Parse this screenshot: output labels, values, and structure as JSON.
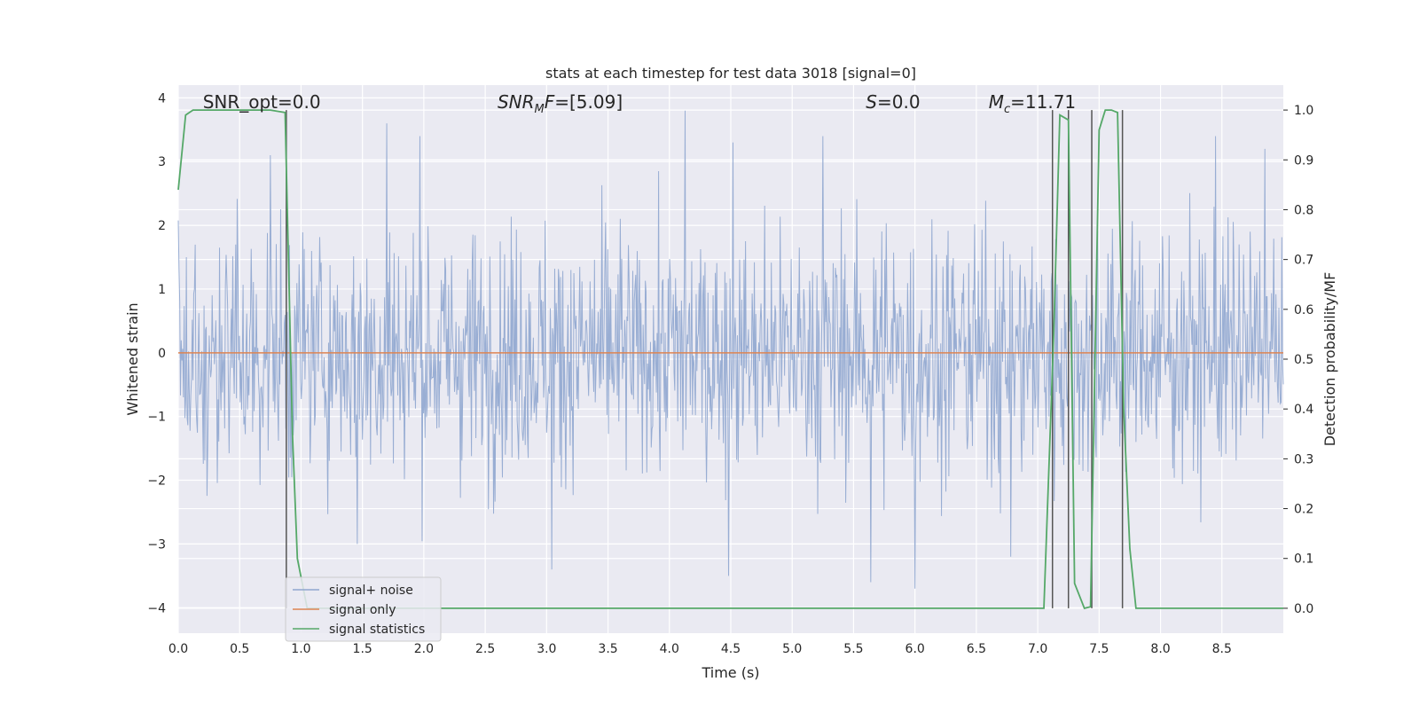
{
  "chart_data": {
    "type": "line",
    "title": "stats at each timestep for test data 3018 [signal=0]",
    "xlabel": "Time (s)",
    "ylabel": "Whitened strain",
    "y2label": "Detection probability/MF",
    "xlim": [
      0.0,
      9.0
    ],
    "ylim": [
      -4.4,
      4.2
    ],
    "y2lim": [
      -0.05,
      1.05
    ],
    "xticks": [
      0.0,
      0.5,
      1.0,
      1.5,
      2.0,
      2.5,
      3.0,
      3.5,
      4.0,
      4.5,
      5.0,
      5.5,
      6.0,
      6.5,
      7.0,
      7.5,
      8.0,
      8.5
    ],
    "xtick_labels": [
      "0.0",
      "0.5",
      "1.0",
      "1.5",
      "2.0",
      "2.5",
      "3.0",
      "3.5",
      "4.0",
      "4.5",
      "5.0",
      "5.5",
      "6.0",
      "6.5",
      "7.0",
      "7.5",
      "8.0",
      "8.5"
    ],
    "yticks": [
      4,
      3,
      2,
      1,
      0,
      -1,
      -2,
      -3,
      -4
    ],
    "ytick_labels": [
      "4",
      "3",
      "2",
      "1",
      "0",
      "−1",
      "−2",
      "−3",
      "−4"
    ],
    "y2ticks": [
      1.0,
      0.9,
      0.8,
      0.7,
      0.6,
      0.5,
      0.4,
      0.3,
      0.2,
      0.1,
      0.0
    ],
    "y2tick_labels": [
      "1.0",
      "0.9",
      "0.8",
      "0.7",
      "0.6",
      "0.5",
      "0.4",
      "0.3",
      "0.2",
      "0.1",
      "0.0"
    ],
    "grid": true,
    "legend_position": "lower-left",
    "annotations": [
      {
        "text": "SNR_opt=0.0",
        "x": 0.2
      },
      {
        "text": "SNR_MF=[5.09]",
        "x": 2.6
      },
      {
        "text": "S=0.0",
        "x": 5.6
      },
      {
        "text": "M_c=11.71",
        "x": 6.6
      }
    ],
    "series": [
      {
        "name": "signal+ noise",
        "color": "#8fa6cf",
        "kind": "noise",
        "duration": 9.0,
        "envelope_typical": 2.0,
        "peak_spikes": [
          [
            0.75,
            3.1
          ],
          [
            1.7,
            3.6
          ],
          [
            1.97,
            3.4
          ],
          [
            4.13,
            3.8
          ],
          [
            4.52,
            3.3
          ],
          [
            5.25,
            3.4
          ],
          [
            8.45,
            3.4
          ],
          [
            8.85,
            3.2
          ],
          [
            5.64,
            -3.6
          ],
          [
            6.0,
            -3.7
          ],
          [
            4.48,
            -3.5
          ],
          [
            3.04,
            -3.4
          ],
          [
            1.46,
            -3.0
          ],
          [
            6.78,
            -3.2
          ]
        ]
      },
      {
        "name": "signal only",
        "color": "#dd8452",
        "x": [
          0.0,
          9.0
        ],
        "y": [
          0.0,
          0.0
        ]
      },
      {
        "name": "signal statistics",
        "color": "#55a868",
        "axis": "right",
        "x": [
          0.0,
          0.06,
          0.12,
          0.25,
          0.5,
          0.75,
          0.87,
          0.93,
          0.97,
          1.05,
          2.0,
          4.0,
          6.0,
          7.0,
          7.05,
          7.13,
          7.18,
          7.25,
          7.3,
          7.38,
          7.43,
          7.5,
          7.55,
          7.6,
          7.65,
          7.7,
          7.75,
          7.8,
          8.5,
          9.0
        ],
        "y": [
          0.84,
          0.99,
          1.0,
          1.0,
          1.0,
          1.0,
          0.995,
          0.35,
          0.1,
          0.0,
          0.0,
          0.0,
          0.0,
          0.0,
          0.0,
          0.55,
          0.99,
          0.98,
          0.05,
          0.0,
          0.003,
          0.96,
          1.0,
          1.0,
          0.995,
          0.4,
          0.12,
          0.0,
          0.0,
          0.0
        ]
      }
    ],
    "vertical_markers": {
      "color": "#555555",
      "x": [
        0.88,
        7.12,
        7.25,
        7.44,
        7.69
      ],
      "y_top": 1.0
    }
  }
}
